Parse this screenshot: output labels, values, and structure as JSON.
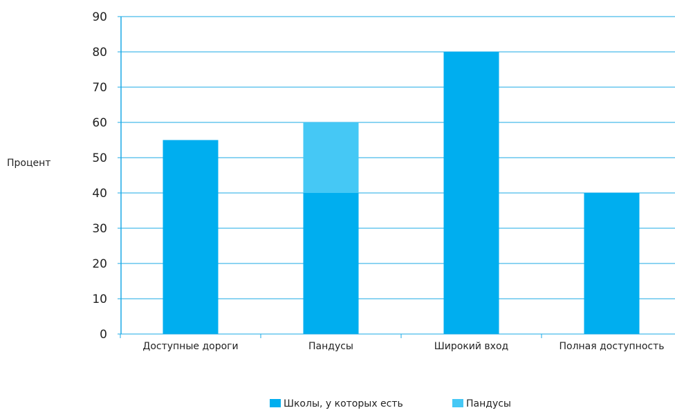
{
  "chart_data": {
    "type": "bar",
    "stacked": true,
    "title": "",
    "xlabel": "",
    "ylabel": "Процент",
    "ylim": [
      0,
      90
    ],
    "yticks": [
      0,
      10,
      20,
      30,
      40,
      50,
      60,
      70,
      80,
      90
    ],
    "grid": true,
    "legend_position": "bottom",
    "categories": [
      "Доступные дороги",
      "Пандусы",
      "Широкий вход",
      "Полная доступность"
    ],
    "series": [
      {
        "name": "Школы, у которых есть",
        "color": "#00AEEF",
        "values": [
          55,
          40,
          80,
          40
        ]
      },
      {
        "name": "Пандусы",
        "color": "#45C8F5",
        "values": [
          0,
          20,
          0,
          0
        ]
      }
    ]
  }
}
